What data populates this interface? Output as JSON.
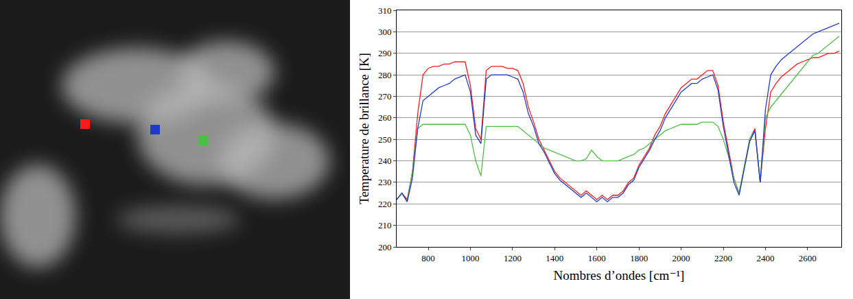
{
  "chart_data": {
    "type": "line",
    "xlabel": "Nombres d’ondes [cm⁻¹]",
    "ylabel": "Temperature de brillance [K]",
    "x": [
      650,
      675,
      700,
      725,
      750,
      775,
      800,
      825,
      850,
      875,
      900,
      925,
      950,
      975,
      1000,
      1025,
      1050,
      1075,
      1100,
      1125,
      1150,
      1175,
      1200,
      1225,
      1250,
      1275,
      1300,
      1325,
      1350,
      1375,
      1400,
      1425,
      1450,
      1475,
      1500,
      1525,
      1550,
      1575,
      1600,
      1625,
      1650,
      1675,
      1700,
      1725,
      1750,
      1775,
      1800,
      1825,
      1850,
      1875,
      1900,
      1925,
      1950,
      1975,
      2000,
      2025,
      2050,
      2075,
      2100,
      2125,
      2150,
      2175,
      2200,
      2225,
      2250,
      2275,
      2300,
      2325,
      2350,
      2375,
      2400,
      2425,
      2450,
      2475,
      2500,
      2525,
      2550,
      2575,
      2600,
      2625,
      2650,
      2675,
      2700,
      2725,
      2750
    ],
    "series": [
      {
        "color": "#ff1a1a",
        "values": [
          222,
          225,
          222,
          235,
          262,
          280,
          283,
          284,
          284,
          285,
          285,
          286,
          286,
          286,
          275,
          255,
          250,
          282,
          284,
          284,
          284,
          283,
          283,
          282,
          276,
          265,
          258,
          250,
          245,
          240,
          235,
          232,
          230,
          228,
          226,
          224,
          226,
          224,
          222,
          224,
          222,
          224,
          224,
          226,
          230,
          232,
          238,
          242,
          246,
          252,
          256,
          262,
          266,
          270,
          274,
          276,
          278,
          278,
          280,
          282,
          282,
          275,
          258,
          245,
          232,
          225,
          238,
          250,
          255,
          230,
          255,
          272,
          276,
          279,
          281,
          283,
          285,
          286,
          287,
          288,
          288,
          289,
          290,
          290,
          291
        ]
      },
      {
        "color": "#4cc046",
        "values": [
          222,
          225,
          221,
          235,
          255,
          257,
          257,
          257,
          257,
          257,
          257,
          257,
          257,
          257,
          252,
          240,
          233,
          256,
          256,
          256,
          256,
          256,
          256,
          256,
          254,
          252,
          250,
          248,
          246,
          245,
          244,
          243,
          242,
          241,
          240,
          240,
          241,
          245,
          242,
          240,
          240,
          240,
          240,
          241,
          242,
          243,
          245,
          246,
          248,
          250,
          252,
          254,
          255,
          256,
          257,
          257,
          257,
          257,
          258,
          258,
          258,
          256,
          250,
          242,
          232,
          225,
          237,
          250,
          254,
          230,
          260,
          265,
          268,
          271,
          274,
          277,
          280,
          283,
          286,
          289,
          290,
          292,
          294,
          296,
          298
        ]
      },
      {
        "color": "#1f3cc8",
        "values": [
          222,
          225,
          221,
          232,
          255,
          268,
          270,
          272,
          274,
          275,
          276,
          278,
          279,
          280,
          272,
          252,
          248,
          278,
          280,
          280,
          280,
          280,
          279,
          278,
          272,
          262,
          256,
          248,
          244,
          239,
          234,
          231,
          229,
          227,
          225,
          223,
          225,
          223,
          221,
          223,
          221,
          223,
          223,
          225,
          229,
          231,
          237,
          241,
          245,
          250,
          254,
          260,
          264,
          268,
          272,
          274,
          276,
          276,
          278,
          279,
          280,
          273,
          256,
          243,
          230,
          224,
          237,
          249,
          254,
          230,
          264,
          280,
          284,
          287,
          289,
          291,
          293,
          295,
          297,
          299,
          300,
          301,
          302,
          303,
          304
        ]
      }
    ],
    "xlim": [
      650,
      2760
    ],
    "ylim": [
      200,
      310
    ],
    "xticks": [
      800,
      1000,
      1200,
      1400,
      1600,
      1800,
      2000,
      2200,
      2400,
      2600
    ],
    "yticks": [
      200,
      210,
      220,
      230,
      240,
      250,
      260,
      270,
      280,
      290,
      300,
      310
    ],
    "grid": true
  }
}
